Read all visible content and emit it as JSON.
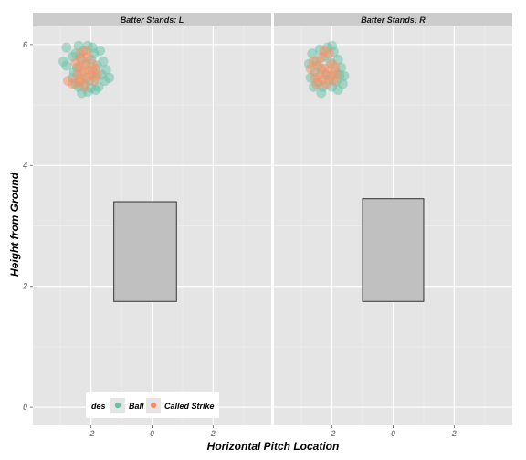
{
  "chart_data": {
    "type": "scatter",
    "xlabel": "Horizontal Pitch Location",
    "ylabel": "Height from Ground",
    "xlim": [
      -3.9,
      3.9
    ],
    "ylim": [
      -0.3,
      6.3
    ],
    "x_ticks": [
      -2,
      0,
      2
    ],
    "y_ticks": [
      0,
      2,
      4,
      6
    ],
    "grid": true,
    "legend_placement": "bottom-left",
    "legend": {
      "title": "des",
      "entries": [
        {
          "label": "Ball",
          "color": "#66c2a5"
        },
        {
          "label": "Called Strike",
          "color": "#fc8d62"
        }
      ]
    },
    "panels": [
      {
        "strip": "Batter Stands: L",
        "strike_zone": {
          "x": [
            -1.25,
            0.8
          ],
          "y": [
            1.75,
            3.4
          ]
        },
        "series": [
          {
            "name": "Ball",
            "color": "#66c2a5",
            "points": [
              [
                -2.9,
                5.72
              ],
              [
                -2.8,
                5.65
              ],
              [
                -2.8,
                5.95
              ],
              [
                -2.6,
                5.45
              ],
              [
                -2.55,
                5.55
              ],
              [
                -2.5,
                5.85
              ],
              [
                -2.45,
                5.62
              ],
              [
                -2.4,
                5.3
              ],
              [
                -2.35,
                5.78
              ],
              [
                -2.3,
                5.5
              ],
              [
                -2.25,
                5.9
              ],
              [
                -2.2,
                5.35
              ],
              [
                -2.15,
                5.68
              ],
              [
                -2.1,
                5.98
              ],
              [
                -2.05,
                5.4
              ],
              [
                -2.0,
                5.75
              ],
              [
                -2.0,
                5.28
              ],
              [
                -1.95,
                5.55
              ],
              [
                -1.9,
                5.85
              ],
              [
                -1.85,
                5.45
              ],
              [
                -1.8,
                5.65
              ],
              [
                -1.75,
                5.3
              ],
              [
                -1.7,
                5.9
              ],
              [
                -1.65,
                5.5
              ],
              [
                -1.6,
                5.72
              ],
              [
                -1.55,
                5.4
              ],
              [
                -1.5,
                5.58
              ],
              [
                -2.3,
                5.2
              ],
              [
                -2.1,
                5.22
              ],
              [
                -1.95,
                5.95
              ],
              [
                -1.4,
                5.45
              ],
              [
                -2.6,
                5.8
              ],
              [
                -2.4,
                5.98
              ],
              [
                -1.85,
                5.25
              ],
              [
                -2.5,
                5.35
              ]
            ]
          },
          {
            "name": "Called Strike",
            "color": "#fc8d62",
            "points": [
              [
                -2.75,
                5.4
              ],
              [
                -2.6,
                5.35
              ],
              [
                -2.5,
                5.7
              ],
              [
                -2.45,
                5.5
              ],
              [
                -2.4,
                5.62
              ],
              [
                -2.35,
                5.42
              ],
              [
                -2.3,
                5.75
              ],
              [
                -2.25,
                5.55
              ],
              [
                -2.2,
                5.65
              ],
              [
                -2.15,
                5.45
              ],
              [
                -2.1,
                5.8
              ],
              [
                -2.05,
                5.58
              ],
              [
                -2.0,
                5.5
              ],
              [
                -1.95,
                5.68
              ],
              [
                -1.9,
                5.4
              ],
              [
                -1.85,
                5.6
              ],
              [
                -1.8,
                5.5
              ],
              [
                -2.35,
                5.85
              ],
              [
                -2.15,
                5.9
              ],
              [
                -2.4,
                5.38
              ],
              [
                -2.2,
                5.3
              ]
            ]
          }
        ]
      },
      {
        "strip": "Batter Stands: R",
        "strike_zone": {
          "x": [
            -1.0,
            1.0
          ],
          "y": [
            1.75,
            3.45
          ]
        },
        "series": [
          {
            "name": "Ball",
            "color": "#66c2a5",
            "points": [
              [
                -2.75,
                5.68
              ],
              [
                -2.7,
                5.45
              ],
              [
                -2.65,
                5.85
              ],
              [
                -2.55,
                5.55
              ],
              [
                -2.5,
                5.72
              ],
              [
                -2.45,
                5.38
              ],
              [
                -2.4,
                5.92
              ],
              [
                -2.35,
                5.6
              ],
              [
                -2.3,
                5.3
              ],
              [
                -2.25,
                5.8
              ],
              [
                -2.2,
                5.5
              ],
              [
                -2.15,
                5.95
              ],
              [
                -2.1,
                5.42
              ],
              [
                -2.05,
                5.7
              ],
              [
                -2.0,
                5.3
              ],
              [
                -1.95,
                5.88
              ],
              [
                -1.9,
                5.55
              ],
              [
                -1.85,
                5.4
              ],
              [
                -1.8,
                5.75
              ],
              [
                -1.75,
                5.5
              ],
              [
                -1.7,
                5.62
              ],
              [
                -1.65,
                5.35
              ],
              [
                -1.6,
                5.48
              ],
              [
                -2.35,
                5.2
              ],
              [
                -2.0,
                5.98
              ],
              [
                -1.8,
                5.25
              ],
              [
                -2.6,
                5.3
              ]
            ]
          },
          {
            "name": "Called Strike",
            "color": "#fc8d62",
            "points": [
              [
                -2.7,
                5.6
              ],
              [
                -2.6,
                5.72
              ],
              [
                -2.55,
                5.45
              ],
              [
                -2.45,
                5.65
              ],
              [
                -2.4,
                5.5
              ],
              [
                -2.35,
                5.78
              ],
              [
                -2.3,
                5.42
              ],
              [
                -2.25,
                5.6
              ],
              [
                -2.2,
                5.35
              ],
              [
                -2.15,
                5.55
              ],
              [
                -2.1,
                5.85
              ],
              [
                -2.05,
                5.48
              ],
              [
                -2.0,
                5.68
              ],
              [
                -1.95,
                5.4
              ],
              [
                -1.9,
                5.62
              ],
              [
                -1.85,
                5.5
              ],
              [
                -2.25,
                5.9
              ],
              [
                -2.5,
                5.35
              ]
            ]
          }
        ]
      }
    ]
  }
}
